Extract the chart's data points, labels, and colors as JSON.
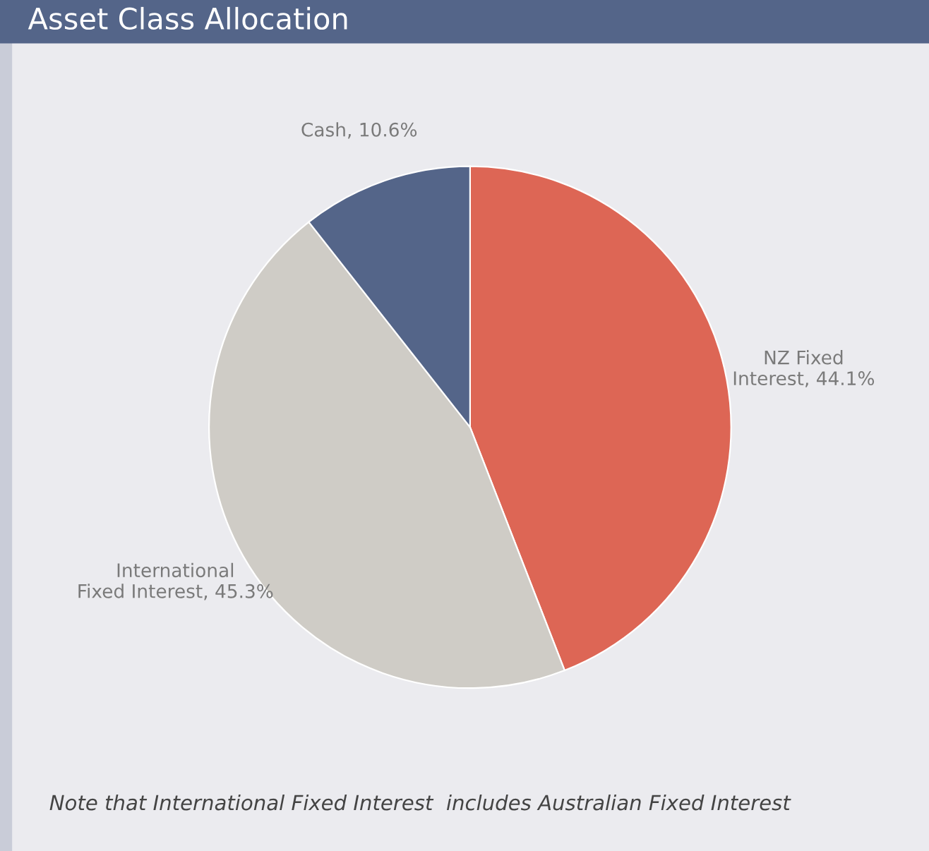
{
  "chart_data": {
    "type": "pie",
    "title": "Asset Class Allocation",
    "categories": [
      "NZ Fixed\nInterest",
      "International\nFixed Interest",
      "Cash"
    ],
    "values": [
      44.1,
      45.3,
      10.6
    ],
    "value_labels": [
      "44.1%",
      "45.3%",
      "10.6%"
    ],
    "colors": [
      "#dd6655",
      "#cfccc6",
      "#546589"
    ],
    "annotations": [
      "Note that International Fixed Interest  includes Australian Fixed Interest"
    ]
  }
}
